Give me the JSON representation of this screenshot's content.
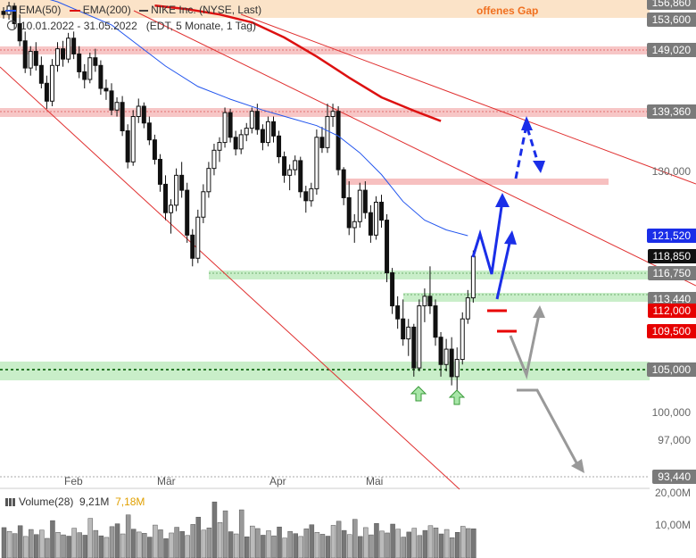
{
  "legend": {
    "ema50_label": "EMA(50)",
    "ema200_label": "EMA(200)",
    "instrument": "NIKE Inc. (NYSE, Last)",
    "date_range": "10.01.2022 - 31.05.2022",
    "timeframe": "(EDT, 5 Monate, 1 Tag)",
    "ema50_color": "#2255ee",
    "ema200_color": "#dd1111"
  },
  "annotation_gap": "offenes Gap",
  "price_badges": [
    {
      "label": "156,860",
      "style": "grey",
      "value": 156.86
    },
    {
      "label": "153,600",
      "style": "grey",
      "value": 153.6
    },
    {
      "label": "149,020",
      "style": "grey",
      "value": 149.02
    },
    {
      "label": "139,360",
      "style": "grey",
      "value": 139.36
    },
    {
      "label": "121,520",
      "style": "blue",
      "value": 121.52
    },
    {
      "label": "118,850",
      "style": "black",
      "value": 118.85
    },
    {
      "label": "116,750",
      "style": "grey",
      "value": 116.75
    },
    {
      "label": "113,440",
      "style": "grey",
      "value": 113.44
    },
    {
      "label": "112,000",
      "style": "red",
      "value": 112.0
    },
    {
      "label": "109,500",
      "style": "red",
      "value": 109.5
    },
    {
      "label": "105,000",
      "style": "grey",
      "value": 105.0
    },
    {
      "label": "93,440",
      "style": "grey",
      "value": 93.44
    }
  ],
  "axis_ticks": [
    {
      "label": "130,000",
      "value": 130.0
    },
    {
      "label": "100,000",
      "value": 100.0
    },
    {
      "label": "97,000",
      "value": 97.0
    }
  ],
  "volume": {
    "title": "Volume(28)",
    "current": "9,21M",
    "average": "7,18M",
    "average_color": "#e0a000",
    "ticks": [
      "20,00M",
      "10,00M"
    ]
  },
  "months": [
    "Feb",
    "Mär",
    "Apr",
    "Mai"
  ],
  "chart_data": {
    "type": "candlestick",
    "title": "NIKE Inc. (NYSE, Last)",
    "x_range": [
      "2022-01-10",
      "2022-05-31"
    ],
    "y_range": [
      93,
      157
    ],
    "grid": false,
    "series": [
      {
        "name": "NIKE Inc.",
        "kind": "ohlc",
        "values": [
          [
            155.2,
            156.0,
            153.8,
            154.6
          ],
          [
            154.6,
            157.0,
            153.6,
            156.2
          ],
          [
            156.2,
            156.8,
            152.2,
            153.0
          ],
          [
            153.0,
            154.6,
            149.6,
            150.4
          ],
          [
            150.4,
            151.8,
            145.4,
            146.2
          ],
          [
            146.2,
            149.6,
            145.0,
            148.8
          ],
          [
            148.8,
            150.2,
            145.8,
            146.6
          ],
          [
            146.6,
            148.0,
            143.0,
            143.8
          ],
          [
            143.8,
            145.0,
            139.8,
            141.0
          ],
          [
            141.0,
            147.6,
            140.2,
            146.6
          ],
          [
            146.6,
            150.2,
            145.6,
            149.2
          ],
          [
            149.2,
            150.4,
            146.4,
            147.6
          ],
          [
            147.6,
            151.6,
            147.0,
            150.8
          ],
          [
            150.8,
            151.8,
            147.6,
            148.4
          ],
          [
            148.4,
            149.6,
            144.6,
            145.6
          ],
          [
            145.6,
            146.8,
            143.0,
            144.4
          ],
          [
            144.4,
            148.6,
            143.8,
            147.8
          ],
          [
            147.8,
            149.2,
            145.6,
            146.6
          ],
          [
            146.6,
            147.4,
            142.0,
            143.0
          ],
          [
            143.0,
            144.4,
            141.2,
            142.6
          ],
          [
            142.6,
            143.8,
            138.8,
            139.6
          ],
          [
            139.6,
            141.6,
            138.6,
            140.8
          ],
          [
            140.8,
            141.8,
            135.6,
            136.4
          ],
          [
            136.4,
            137.4,
            130.6,
            131.6
          ],
          [
            131.6,
            139.6,
            131.0,
            138.6
          ],
          [
            138.6,
            141.4,
            137.6,
            140.2
          ],
          [
            140.2,
            140.8,
            136.8,
            137.6
          ],
          [
            137.6,
            138.6,
            134.2,
            135.0
          ],
          [
            135.0,
            135.8,
            131.2,
            132.0
          ],
          [
            132.0,
            132.8,
            127.4,
            128.4
          ],
          [
            128.4,
            129.6,
            123.6,
            124.6
          ],
          [
            124.6,
            126.4,
            121.8,
            125.6
          ],
          [
            125.6,
            130.6,
            124.8,
            129.6
          ],
          [
            129.6,
            131.6,
            126.6,
            127.6
          ],
          [
            127.6,
            128.6,
            120.6,
            121.6
          ],
          [
            121.6,
            122.4,
            117.6,
            118.6
          ],
          [
            118.6,
            125.0,
            118.0,
            124.0
          ],
          [
            124.0,
            128.4,
            123.2,
            127.4
          ],
          [
            127.4,
            131.6,
            126.6,
            130.6
          ],
          [
            130.6,
            134.4,
            129.6,
            133.4
          ],
          [
            133.4,
            135.4,
            131.6,
            134.6
          ],
          [
            134.6,
            140.0,
            133.8,
            139.2
          ],
          [
            139.2,
            139.8,
            134.6,
            135.4
          ],
          [
            135.4,
            136.4,
            132.6,
            133.6
          ],
          [
            133.6,
            136.6,
            132.8,
            135.8
          ],
          [
            135.8,
            137.6,
            134.8,
            136.8
          ],
          [
            136.8,
            140.0,
            136.0,
            139.4
          ],
          [
            139.4,
            140.6,
            135.8,
            136.6
          ],
          [
            136.6,
            137.4,
            133.4,
            134.6
          ],
          [
            134.6,
            138.6,
            134.0,
            137.8
          ],
          [
            137.8,
            138.6,
            134.6,
            135.6
          ],
          [
            135.6,
            136.4,
            131.4,
            132.4
          ],
          [
            132.4,
            133.2,
            128.6,
            129.6
          ],
          [
            129.6,
            131.2,
            127.6,
            130.4
          ],
          [
            130.4,
            132.6,
            129.6,
            131.8
          ],
          [
            131.8,
            132.4,
            126.6,
            127.4
          ],
          [
            127.4,
            128.2,
            124.6,
            126.2
          ],
          [
            126.2,
            128.6,
            125.4,
            127.8
          ],
          [
            127.8,
            136.6,
            127.0,
            135.4
          ],
          [
            135.4,
            137.0,
            133.0,
            133.8
          ],
          [
            133.8,
            140.6,
            133.0,
            138.6
          ],
          [
            138.6,
            140.6,
            137.0,
            139.4
          ],
          [
            139.4,
            140.2,
            129.6,
            130.4
          ],
          [
            130.4,
            130.8,
            125.6,
            126.6
          ],
          [
            126.6,
            128.8,
            121.6,
            122.6
          ],
          [
            122.6,
            124.4,
            120.6,
            123.4
          ],
          [
            123.4,
            128.6,
            122.6,
            127.6
          ],
          [
            127.6,
            128.8,
            123.8,
            124.6
          ],
          [
            124.6,
            125.6,
            120.6,
            121.6
          ],
          [
            121.6,
            126.8,
            121.0,
            126.0
          ],
          [
            126.0,
            127.0,
            122.6,
            123.6
          ],
          [
            123.6,
            124.4,
            115.6,
            116.8
          ],
          [
            116.8,
            117.4,
            111.6,
            112.6
          ],
          [
            112.6,
            113.8,
            109.8,
            111.0
          ],
          [
            111.0,
            113.4,
            107.8,
            108.6
          ],
          [
            108.6,
            111.0,
            106.6,
            110.0
          ],
          [
            110.0,
            110.4,
            104.2,
            105.2
          ],
          [
            105.2,
            113.4,
            104.8,
            112.6
          ],
          [
            112.6,
            114.8,
            110.6,
            113.8
          ],
          [
            113.8,
            117.6,
            111.6,
            112.6
          ],
          [
            112.6,
            113.4,
            107.8,
            108.8
          ],
          [
            108.8,
            109.4,
            104.2,
            105.6
          ],
          [
            105.6,
            108.6,
            104.8,
            107.4
          ],
          [
            107.4,
            108.8,
            103.2,
            104.2
          ],
          [
            104.2,
            107.6,
            101.4,
            106.2
          ],
          [
            106.2,
            111.8,
            105.6,
            111.0
          ],
          [
            111.0,
            114.6,
            110.4,
            113.6
          ],
          [
            113.6,
            119.6,
            113.0,
            118.85
          ]
        ]
      },
      {
        "name": "EMA(50)",
        "kind": "line",
        "values": [
          [
            0,
            159.5
          ],
          [
            10,
            157.0
          ],
          [
            20,
            152.8
          ],
          [
            30,
            146.5
          ],
          [
            36,
            143.3
          ],
          [
            42,
            141.3
          ],
          [
            48,
            139.6
          ],
          [
            53,
            138.4
          ],
          [
            58,
            137.2
          ],
          [
            62,
            135.6
          ],
          [
            66,
            133.0
          ],
          [
            70,
            129.7
          ],
          [
            74,
            126.1
          ],
          [
            78,
            123.6
          ],
          [
            82,
            122.3
          ],
          [
            86,
            121.52
          ]
        ]
      },
      {
        "name": "EMA(200)",
        "kind": "line",
        "values": [
          [
            28,
            156.3
          ],
          [
            34,
            155.6
          ],
          [
            40,
            154.6
          ],
          [
            46,
            153.2
          ],
          [
            52,
            150.9
          ],
          [
            58,
            148.0
          ],
          [
            64,
            144.7
          ],
          [
            70,
            141.6
          ],
          [
            76,
            139.5
          ],
          [
            81,
            137.9
          ]
        ]
      }
    ],
    "levels": [
      156.86,
      153.6,
      149.02,
      139.36,
      121.52,
      116.75,
      113.44,
      112.0,
      109.5,
      105.0,
      93.44
    ],
    "volume_series": {
      "name": "Volume(28)",
      "values": [
        9.6,
        8.4,
        7.7,
        10.2,
        6.8,
        9.0,
        7.4,
        8.8,
        6.2,
        11.8,
        8.1,
        7.3,
        6.9,
        9.4,
        8.0,
        7.2,
        12.5,
        8.7,
        7.0,
        6.5,
        9.9,
        10.8,
        7.6,
        13.6,
        9.1,
        8.2,
        7.8,
        6.6,
        10.4,
        8.9,
        6.1,
        7.9,
        9.7,
        8.4,
        7.1,
        10.6,
        12.9,
        8.8,
        9.5,
        17.7,
        11.2,
        14.9,
        8.3,
        7.6,
        15.2,
        6.7,
        10.1,
        9.3,
        7.2,
        8.6,
        7.0,
        9.8,
        6.3,
        8.4,
        7.7,
        6.8,
        9.2,
        10.5,
        8.1,
        7.5,
        6.9,
        10.3,
        11.6,
        8.7,
        7.4,
        12.2,
        6.8,
        9.6,
        7.3,
        10.9,
        8.5,
        7.9,
        10.7,
        9.1,
        6.6,
        8.2,
        9.4,
        7.1,
        8.7,
        10.2,
        9.5,
        7.6,
        9.0,
        6.4,
        8.1,
        10.0,
        9.3,
        9.21
      ]
    }
  }
}
